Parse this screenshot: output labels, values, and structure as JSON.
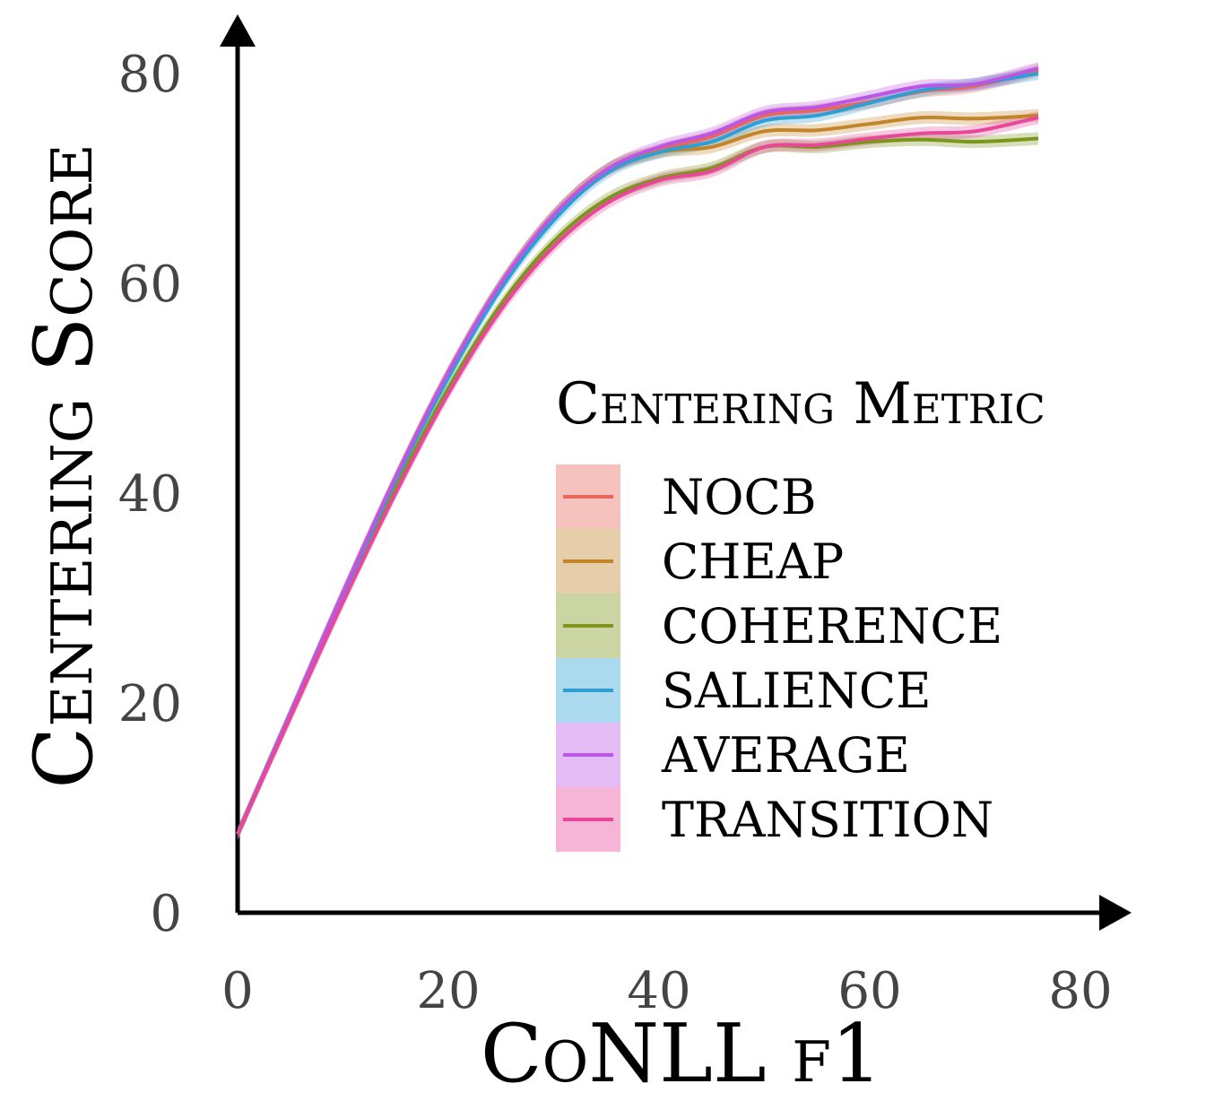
{
  "chart_data": {
    "type": "line",
    "title": "",
    "xlabel": "CoNLL f1",
    "ylabel": "Centering Score",
    "xlim": [
      0,
      80
    ],
    "ylim": [
      0,
      80
    ],
    "xticks": [
      "0",
      "20",
      "40",
      "60",
      "80"
    ],
    "yticks": [
      "0",
      "20",
      "40",
      "60",
      "80"
    ],
    "grid": false,
    "legend": {
      "title": "Centering Metric",
      "placement": "center-right"
    },
    "x": [
      0,
      5,
      10,
      15,
      20,
      25,
      30,
      35,
      40,
      45,
      50,
      55,
      60,
      65,
      70,
      76
    ],
    "series": [
      {
        "name": "NOCB",
        "color": "#e8675a",
        "band": 0.6,
        "values": [
          7.5,
          19,
          30.5,
          41.5,
          51.5,
          60,
          66.5,
          70.8,
          72.7,
          74,
          76,
          76.5,
          77.3,
          78.3,
          78.8,
          80.3
        ]
      },
      {
        "name": "CHEAP",
        "color": "#c2852a",
        "band": 0.6,
        "values": [
          7.5,
          19,
          30.5,
          41.5,
          51.5,
          60,
          66.5,
          70.8,
          72.5,
          73,
          74.5,
          74.6,
          75.2,
          75.8,
          75.7,
          76
        ]
      },
      {
        "name": "COHERENCE",
        "color": "#7c951c",
        "band": 0.6,
        "values": [
          7.5,
          18.8,
          30,
          40.5,
          50,
          58,
          64,
          68,
          70,
          71,
          73,
          73,
          73.5,
          73.7,
          73.5,
          73.8
        ]
      },
      {
        "name": "SALIENCE",
        "color": "#2e9fd3",
        "band": 0.6,
        "values": [
          7.5,
          19,
          30.3,
          41.2,
          51,
          59.5,
          66,
          70.5,
          72.5,
          73.5,
          75.5,
          76,
          77.2,
          78.4,
          79,
          80
        ]
      },
      {
        "name": "AVERAGE",
        "color": "#bb56e6",
        "band": 0.6,
        "values": [
          7.5,
          19,
          30.5,
          41.5,
          51.5,
          60,
          66.5,
          70.8,
          73,
          74.3,
          76.3,
          76.8,
          77.8,
          78.8,
          79,
          80.5
        ]
      },
      {
        "name": "TRANSITION",
        "color": "#e8479a",
        "band": 0.6,
        "values": [
          7.5,
          18.6,
          29.6,
          40,
          49.5,
          57.5,
          63.5,
          67.6,
          69.8,
          70.7,
          73,
          73.2,
          73.8,
          74.3,
          74.5,
          75.8
        ]
      }
    ]
  }
}
